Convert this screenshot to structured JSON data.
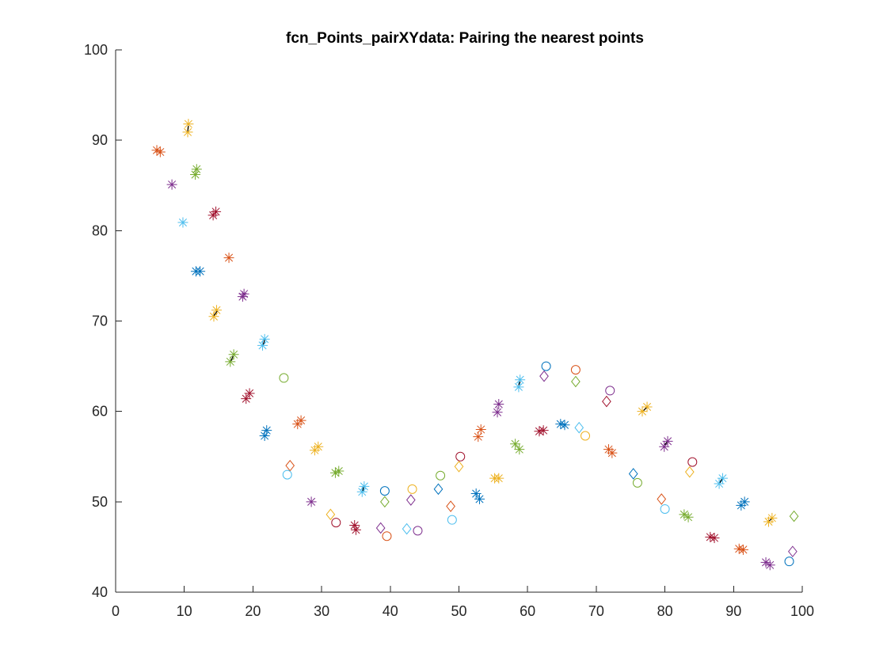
{
  "chart_data": {
    "type": "scatter",
    "title": "fcn_Points_pairXYdata: Pairing the nearest points",
    "xlabel": "",
    "ylabel": "",
    "xlim": [
      0,
      100
    ],
    "ylim": [
      40,
      100
    ],
    "xticks": [
      0,
      10,
      20,
      30,
      40,
      50,
      60,
      70,
      80,
      90,
      100
    ],
    "yticks": [
      40,
      50,
      60,
      70,
      80,
      90,
      100
    ],
    "grid": false,
    "colors": {
      "blue": "#0072BD",
      "orange": "#D95319",
      "yellow": "#EDB120",
      "purple": "#7E2F8E",
      "green": "#77AC30",
      "cyan": "#4DBEEE",
      "maroon": "#A2142F"
    },
    "points": [
      {
        "x": 6.0,
        "y": 88.9,
        "marker": "star",
        "color": "orange"
      },
      {
        "x": 6.5,
        "y": 88.7,
        "marker": "star",
        "color": "orange"
      },
      {
        "x": 8.2,
        "y": 85.1,
        "marker": "star",
        "color": "purple"
      },
      {
        "x": 10.6,
        "y": 91.8,
        "marker": "star",
        "color": "yellow"
      },
      {
        "x": 10.5,
        "y": 90.9,
        "marker": "star",
        "color": "yellow"
      },
      {
        "x": 11.8,
        "y": 86.8,
        "marker": "star",
        "color": "green"
      },
      {
        "x": 11.6,
        "y": 86.2,
        "marker": "star",
        "color": "green"
      },
      {
        "x": 9.8,
        "y": 80.9,
        "marker": "star",
        "color": "cyan"
      },
      {
        "x": 14.2,
        "y": 81.7,
        "marker": "star",
        "color": "maroon"
      },
      {
        "x": 14.6,
        "y": 82.1,
        "marker": "star",
        "color": "maroon"
      },
      {
        "x": 11.7,
        "y": 75.5,
        "marker": "star",
        "color": "blue"
      },
      {
        "x": 12.3,
        "y": 75.5,
        "marker": "star",
        "color": "blue"
      },
      {
        "x": 16.5,
        "y": 77.0,
        "marker": "star",
        "color": "orange"
      },
      {
        "x": 18.7,
        "y": 73.0,
        "marker": "star",
        "color": "purple"
      },
      {
        "x": 18.5,
        "y": 72.7,
        "marker": "star",
        "color": "purple"
      },
      {
        "x": 14.7,
        "y": 71.2,
        "marker": "star",
        "color": "yellow"
      },
      {
        "x": 14.3,
        "y": 70.5,
        "marker": "star",
        "color": "yellow"
      },
      {
        "x": 17.2,
        "y": 66.3,
        "marker": "star",
        "color": "green"
      },
      {
        "x": 16.7,
        "y": 65.5,
        "marker": "star",
        "color": "green"
      },
      {
        "x": 21.7,
        "y": 68.0,
        "marker": "star",
        "color": "cyan"
      },
      {
        "x": 21.4,
        "y": 67.3,
        "marker": "star",
        "color": "cyan"
      },
      {
        "x": 19.5,
        "y": 62.0,
        "marker": "star",
        "color": "maroon"
      },
      {
        "x": 19.0,
        "y": 61.4,
        "marker": "star",
        "color": "maroon"
      },
      {
        "x": 22.0,
        "y": 57.9,
        "marker": "star",
        "color": "blue"
      },
      {
        "x": 21.7,
        "y": 57.3,
        "marker": "star",
        "color": "blue"
      },
      {
        "x": 24.5,
        "y": 63.7,
        "marker": "circle",
        "color": "green"
      },
      {
        "x": 27.0,
        "y": 59.0,
        "marker": "star",
        "color": "orange"
      },
      {
        "x": 26.5,
        "y": 58.6,
        "marker": "star",
        "color": "orange"
      },
      {
        "x": 29.5,
        "y": 56.1,
        "marker": "star",
        "color": "yellow"
      },
      {
        "x": 29.0,
        "y": 55.7,
        "marker": "star",
        "color": "yellow"
      },
      {
        "x": 25.4,
        "y": 54.0,
        "marker": "diamond",
        "color": "orange"
      },
      {
        "x": 25.0,
        "y": 53.0,
        "marker": "circle",
        "color": "cyan"
      },
      {
        "x": 32.5,
        "y": 53.4,
        "marker": "star",
        "color": "green"
      },
      {
        "x": 32.0,
        "y": 53.2,
        "marker": "star",
        "color": "green"
      },
      {
        "x": 36.2,
        "y": 51.7,
        "marker": "star",
        "color": "cyan"
      },
      {
        "x": 35.9,
        "y": 51.1,
        "marker": "star",
        "color": "cyan"
      },
      {
        "x": 28.5,
        "y": 50.0,
        "marker": "star",
        "color": "purple"
      },
      {
        "x": 31.3,
        "y": 48.6,
        "marker": "diamond",
        "color": "yellow"
      },
      {
        "x": 32.1,
        "y": 47.7,
        "marker": "circle",
        "color": "maroon"
      },
      {
        "x": 34.8,
        "y": 47.4,
        "marker": "star",
        "color": "maroon"
      },
      {
        "x": 35.0,
        "y": 46.9,
        "marker": "star",
        "color": "maroon"
      },
      {
        "x": 38.6,
        "y": 47.1,
        "marker": "diamond",
        "color": "purple"
      },
      {
        "x": 39.5,
        "y": 46.2,
        "marker": "circle",
        "color": "orange"
      },
      {
        "x": 39.2,
        "y": 51.2,
        "marker": "circle",
        "color": "blue"
      },
      {
        "x": 39.2,
        "y": 50.0,
        "marker": "diamond",
        "color": "green"
      },
      {
        "x": 42.4,
        "y": 47.0,
        "marker": "diamond",
        "color": "cyan"
      },
      {
        "x": 44.0,
        "y": 46.8,
        "marker": "circle",
        "color": "purple"
      },
      {
        "x": 43.2,
        "y": 51.4,
        "marker": "circle",
        "color": "yellow"
      },
      {
        "x": 43.0,
        "y": 50.2,
        "marker": "diamond",
        "color": "purple"
      },
      {
        "x": 47.3,
        "y": 52.9,
        "marker": "circle",
        "color": "green"
      },
      {
        "x": 47.0,
        "y": 51.4,
        "marker": "diamond",
        "color": "blue"
      },
      {
        "x": 48.8,
        "y": 49.5,
        "marker": "diamond",
        "color": "orange"
      },
      {
        "x": 49.0,
        "y": 48.0,
        "marker": "circle",
        "color": "cyan"
      },
      {
        "x": 50.2,
        "y": 55.0,
        "marker": "circle",
        "color": "maroon"
      },
      {
        "x": 50.0,
        "y": 53.9,
        "marker": "diamond",
        "color": "yellow"
      },
      {
        "x": 52.5,
        "y": 50.9,
        "marker": "star",
        "color": "blue"
      },
      {
        "x": 53.0,
        "y": 50.3,
        "marker": "star",
        "color": "blue"
      },
      {
        "x": 53.2,
        "y": 58.0,
        "marker": "star",
        "color": "orange"
      },
      {
        "x": 52.8,
        "y": 57.2,
        "marker": "star",
        "color": "orange"
      },
      {
        "x": 55.2,
        "y": 52.6,
        "marker": "star",
        "color": "yellow"
      },
      {
        "x": 55.8,
        "y": 52.6,
        "marker": "star",
        "color": "yellow"
      },
      {
        "x": 55.8,
        "y": 60.8,
        "marker": "star",
        "color": "purple"
      },
      {
        "x": 55.6,
        "y": 59.9,
        "marker": "star",
        "color": "purple"
      },
      {
        "x": 58.2,
        "y": 56.4,
        "marker": "star",
        "color": "green"
      },
      {
        "x": 58.8,
        "y": 55.8,
        "marker": "star",
        "color": "green"
      },
      {
        "x": 58.9,
        "y": 63.5,
        "marker": "star",
        "color": "cyan"
      },
      {
        "x": 58.7,
        "y": 62.7,
        "marker": "star",
        "color": "cyan"
      },
      {
        "x": 61.7,
        "y": 57.8,
        "marker": "star",
        "color": "maroon"
      },
      {
        "x": 62.3,
        "y": 57.9,
        "marker": "star",
        "color": "maroon"
      },
      {
        "x": 62.7,
        "y": 65.0,
        "marker": "circle",
        "color": "blue"
      },
      {
        "x": 62.4,
        "y": 63.9,
        "marker": "diamond",
        "color": "purple"
      },
      {
        "x": 64.8,
        "y": 58.6,
        "marker": "star",
        "color": "blue"
      },
      {
        "x": 65.4,
        "y": 58.5,
        "marker": "star",
        "color": "blue"
      },
      {
        "x": 67.0,
        "y": 64.6,
        "marker": "circle",
        "color": "orange"
      },
      {
        "x": 67.0,
        "y": 63.3,
        "marker": "diamond",
        "color": "green"
      },
      {
        "x": 67.5,
        "y": 58.2,
        "marker": "diamond",
        "color": "cyan"
      },
      {
        "x": 68.4,
        "y": 57.3,
        "marker": "circle",
        "color": "yellow"
      },
      {
        "x": 71.5,
        "y": 61.1,
        "marker": "diamond",
        "color": "maroon"
      },
      {
        "x": 72.0,
        "y": 62.3,
        "marker": "circle",
        "color": "purple"
      },
      {
        "x": 71.8,
        "y": 55.8,
        "marker": "star",
        "color": "orange"
      },
      {
        "x": 72.3,
        "y": 55.4,
        "marker": "star",
        "color": "orange"
      },
      {
        "x": 77.4,
        "y": 60.5,
        "marker": "star",
        "color": "yellow"
      },
      {
        "x": 76.7,
        "y": 60.0,
        "marker": "star",
        "color": "yellow"
      },
      {
        "x": 75.4,
        "y": 53.1,
        "marker": "diamond",
        "color": "blue"
      },
      {
        "x": 76.0,
        "y": 52.1,
        "marker": "circle",
        "color": "green"
      },
      {
        "x": 80.4,
        "y": 56.7,
        "marker": "star",
        "color": "purple"
      },
      {
        "x": 79.9,
        "y": 56.1,
        "marker": "star",
        "color": "purple"
      },
      {
        "x": 79.5,
        "y": 50.3,
        "marker": "diamond",
        "color": "orange"
      },
      {
        "x": 80.0,
        "y": 49.2,
        "marker": "circle",
        "color": "cyan"
      },
      {
        "x": 84.0,
        "y": 54.4,
        "marker": "circle",
        "color": "maroon"
      },
      {
        "x": 83.6,
        "y": 53.3,
        "marker": "diamond",
        "color": "yellow"
      },
      {
        "x": 82.8,
        "y": 48.6,
        "marker": "star",
        "color": "green"
      },
      {
        "x": 83.4,
        "y": 48.3,
        "marker": "star",
        "color": "green"
      },
      {
        "x": 88.4,
        "y": 52.6,
        "marker": "star",
        "color": "cyan"
      },
      {
        "x": 87.9,
        "y": 52.0,
        "marker": "star",
        "color": "cyan"
      },
      {
        "x": 86.6,
        "y": 46.1,
        "marker": "star",
        "color": "maroon"
      },
      {
        "x": 87.2,
        "y": 46.0,
        "marker": "star",
        "color": "maroon"
      },
      {
        "x": 91.6,
        "y": 50.0,
        "marker": "star",
        "color": "blue"
      },
      {
        "x": 91.1,
        "y": 49.6,
        "marker": "star",
        "color": "blue"
      },
      {
        "x": 90.8,
        "y": 44.8,
        "marker": "star",
        "color": "orange"
      },
      {
        "x": 91.4,
        "y": 44.7,
        "marker": "star",
        "color": "orange"
      },
      {
        "x": 95.6,
        "y": 48.2,
        "marker": "star",
        "color": "yellow"
      },
      {
        "x": 95.1,
        "y": 47.8,
        "marker": "star",
        "color": "yellow"
      },
      {
        "x": 94.7,
        "y": 43.3,
        "marker": "star",
        "color": "purple"
      },
      {
        "x": 95.3,
        "y": 43.0,
        "marker": "star",
        "color": "purple"
      },
      {
        "x": 98.8,
        "y": 48.4,
        "marker": "diamond",
        "color": "green"
      },
      {
        "x": 98.6,
        "y": 44.5,
        "marker": "diamond",
        "color": "purple"
      },
      {
        "x": 98.1,
        "y": 43.4,
        "marker": "circle",
        "color": "blue"
      }
    ],
    "pair_lines": [
      {
        "x": [
          10.6,
          10.5
        ],
        "y": [
          91.6,
          91.0
        ]
      },
      {
        "x": [
          14.8,
          14.3
        ],
        "y": [
          71.1,
          70.6
        ]
      },
      {
        "x": [
          17.1,
          16.8
        ],
        "y": [
          66.1,
          65.6
        ]
      },
      {
        "x": [
          21.7,
          21.5
        ],
        "y": [
          67.9,
          67.4
        ]
      },
      {
        "x": [
          36.1,
          36.0
        ],
        "y": [
          51.6,
          51.2
        ]
      },
      {
        "x": [
          58.9,
          58.7
        ],
        "y": [
          63.3,
          62.9
        ]
      },
      {
        "x": [
          77.3,
          76.9
        ],
        "y": [
          60.4,
          60.1
        ]
      },
      {
        "x": [
          80.3,
          80.0
        ],
        "y": [
          56.6,
          56.3
        ]
      },
      {
        "x": [
          88.3,
          88.0
        ],
        "y": [
          52.5,
          52.1
        ]
      },
      {
        "x": [
          95.5,
          95.2
        ],
        "y": [
          48.1,
          47.9
        ]
      }
    ]
  }
}
